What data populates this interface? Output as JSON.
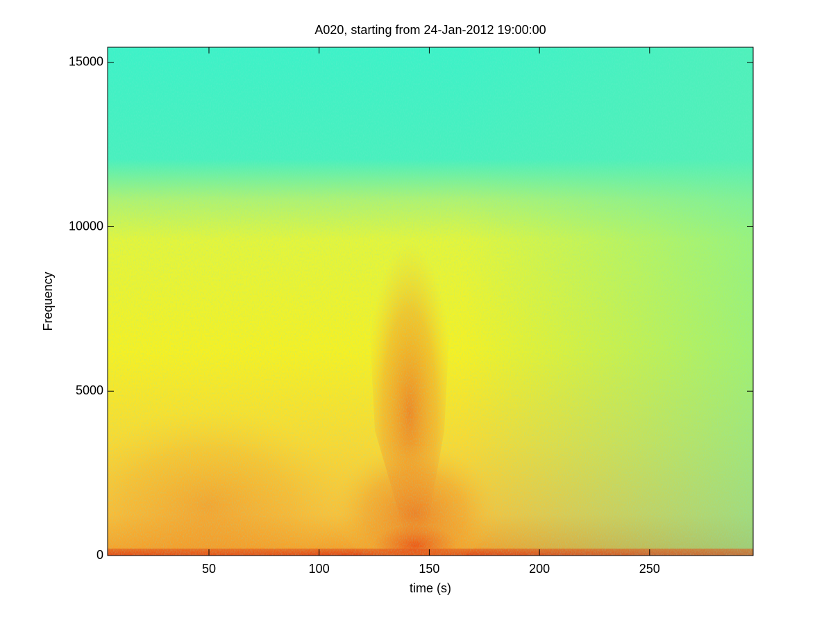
{
  "chart_data": {
    "type": "spectrogram",
    "title": "A020, starting from 24-Jan-2012 19:00:00",
    "x_label": "time (s)",
    "y_label": "Frequency",
    "xlim": [
      4,
      297
    ],
    "xticks": [
      50,
      100,
      150,
      200,
      250
    ],
    "ylim": [
      0,
      15460
    ],
    "yticks": [
      0,
      5000,
      10000,
      15000
    ]
  }
}
